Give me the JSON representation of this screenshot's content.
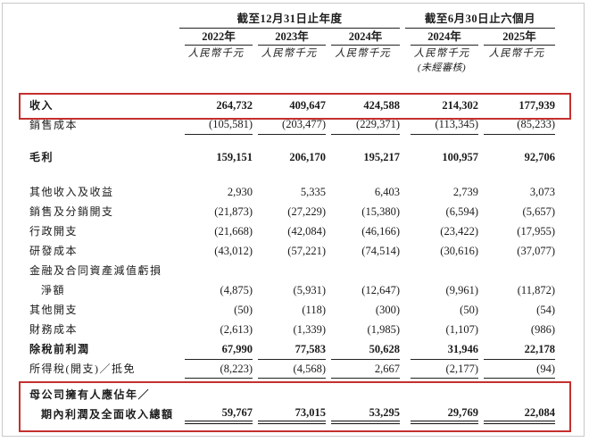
{
  "page": {
    "frame_border_color": "#c9c9c9",
    "highlight_color": "#c4302e"
  },
  "table": {
    "column_groups": [
      {
        "label": "截至12月31日止年度",
        "span": 3
      },
      {
        "label": "截至6月30日止六個月",
        "span": 2
      }
    ],
    "columns": [
      {
        "year": "2022年",
        "unit": "人民幣千元",
        "note": ""
      },
      {
        "year": "2023年",
        "unit": "人民幣千元",
        "note": ""
      },
      {
        "year": "2024年",
        "unit": "人民幣千元",
        "note": ""
      },
      {
        "year": "2024年",
        "unit": "人民幣千元",
        "note": "(未經審核)"
      },
      {
        "year": "2025年",
        "unit": "人民幣千元",
        "note": ""
      }
    ],
    "rows": [
      {
        "label": "收入",
        "values": [
          "264,732",
          "409,647",
          "424,588",
          "214,302",
          "177,939"
        ],
        "bold": true,
        "spacer_before": 21,
        "highlight": true
      },
      {
        "label": "銷售成本",
        "values": [
          "(105,581)",
          "(203,477)",
          "(229,371)",
          "(113,345)",
          "(85,233)"
        ],
        "underline": "single"
      },
      {
        "label": "毛利",
        "values": [
          "159,151",
          "206,170",
          "195,217",
          "100,957",
          "92,706"
        ],
        "bold": true,
        "spacer_before": 14
      },
      {
        "label": "其他收入及收益",
        "values": [
          "2,930",
          "5,335",
          "6,403",
          "2,739",
          "3,073"
        ],
        "spacer_before": 17
      },
      {
        "label": "銷售及分銷開支",
        "values": [
          "(21,873)",
          "(27,229)",
          "(15,380)",
          "(6,594)",
          "(5,657)"
        ]
      },
      {
        "label": "行政開支",
        "values": [
          "(21,668)",
          "(42,084)",
          "(46,166)",
          "(23,422)",
          "(17,955)"
        ]
      },
      {
        "label": "研發成本",
        "values": [
          "(43,012)",
          "(57,221)",
          "(74,514)",
          "(30,616)",
          "(37,077)"
        ]
      },
      {
        "label": "金融及合同資產減值虧損",
        "values": [
          "",
          "",
          "",
          "",
          ""
        ]
      },
      {
        "label": "淨額",
        "indent": true,
        "height": 21,
        "values": [
          "(4,875)",
          "(5,931)",
          "(12,647)",
          "(9,961)",
          "(11,872)"
        ]
      },
      {
        "label": "其他開支",
        "values": [
          "(50)",
          "(118)",
          "(300)",
          "(50)",
          "(54)"
        ]
      },
      {
        "label": "財務成本",
        "values": [
          "(2,613)",
          "(1,339)",
          "(1,985)",
          "(1,107)",
          "(986)"
        ]
      },
      {
        "label": "除稅前利潤",
        "values": [
          "67,990",
          "77,583",
          "50,628",
          "31,946",
          "22,178"
        ],
        "bold": true
      },
      {
        "label": "所得稅(開支)／抵免",
        "values": [
          "(8,223)",
          "(4,568)",
          "2,667",
          "(2,177)",
          "(94)"
        ],
        "underline": "top-bottom"
      },
      {
        "label": "母公司擁有人應佔年／",
        "values": [
          "",
          "",
          "",
          "",
          ""
        ],
        "bold": true,
        "spacer_before": 7,
        "highlight": true
      },
      {
        "label": "期內利潤及全面收入總額",
        "indent": true,
        "values": [
          "59,767",
          "73,015",
          "53,295",
          "29,769",
          "22,084"
        ],
        "bold": true,
        "underline": "double",
        "highlight": true
      }
    ]
  }
}
